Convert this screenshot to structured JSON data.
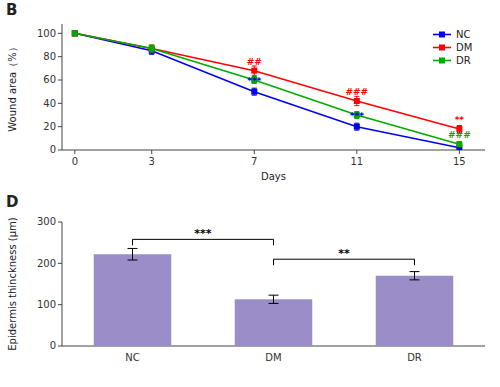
{
  "chart_data": [
    {
      "type": "line",
      "panel_label": "B",
      "x_label": "Days",
      "y_label": "Wound area（%）",
      "x": [
        0,
        3,
        7,
        11,
        15
      ],
      "xlim": [
        -0.5,
        16
      ],
      "xticks": [
        0,
        3,
        7,
        11,
        15
      ],
      "ylim": [
        0,
        108
      ],
      "yticks": [
        0,
        20,
        40,
        60,
        80,
        100
      ],
      "marker": "square",
      "legend": "upper right",
      "grid": false,
      "series": [
        {
          "name": "NC",
          "color": "#0000EE",
          "values": [
            100,
            85,
            50,
            20,
            2
          ],
          "errors": [
            2,
            3,
            3,
            3,
            1
          ]
        },
        {
          "name": "DM",
          "color": "#FF0000",
          "values": [
            100,
            87,
            68,
            42,
            18
          ],
          "errors": [
            2,
            3,
            4,
            4,
            3
          ]
        },
        {
          "name": "DR",
          "color": "#00AA00",
          "values": [
            100,
            87,
            60,
            30,
            5
          ],
          "errors": [
            2,
            3,
            3,
            3,
            2
          ]
        }
      ],
      "annotations": [
        {
          "x": 7,
          "y": 57,
          "text": "***",
          "color": "#0000EE"
        },
        {
          "x": 11,
          "y": 27,
          "text": "***",
          "color": "#0000EE"
        },
        {
          "x": 7,
          "y": 73,
          "text": "##",
          "color": "#FF0000"
        },
        {
          "x": 11,
          "y": 47,
          "text": "###",
          "color": "#FF0000"
        },
        {
          "x": 15,
          "y": 23,
          "text": "**",
          "color": "#FF0000"
        },
        {
          "x": 15,
          "y": 10,
          "text": "###",
          "color": "#00AA00"
        }
      ]
    },
    {
      "type": "bar",
      "panel_label": "D",
      "y_label": "Epidermis thinckness (μm)",
      "categories": [
        "NC",
        "DM",
        "DR"
      ],
      "values": [
        222,
        113,
        170
      ],
      "errors": [
        14,
        10,
        10
      ],
      "color": "#9B8DC8",
      "ylim": [
        0,
        300
      ],
      "yticks": [
        0,
        100,
        200,
        300
      ],
      "grid": false,
      "brackets": [
        {
          "from": "NC",
          "to": "DM",
          "y": 258,
          "text": "***"
        },
        {
          "from": "DM",
          "to": "DR",
          "y": 210,
          "text": "**"
        }
      ]
    }
  ]
}
